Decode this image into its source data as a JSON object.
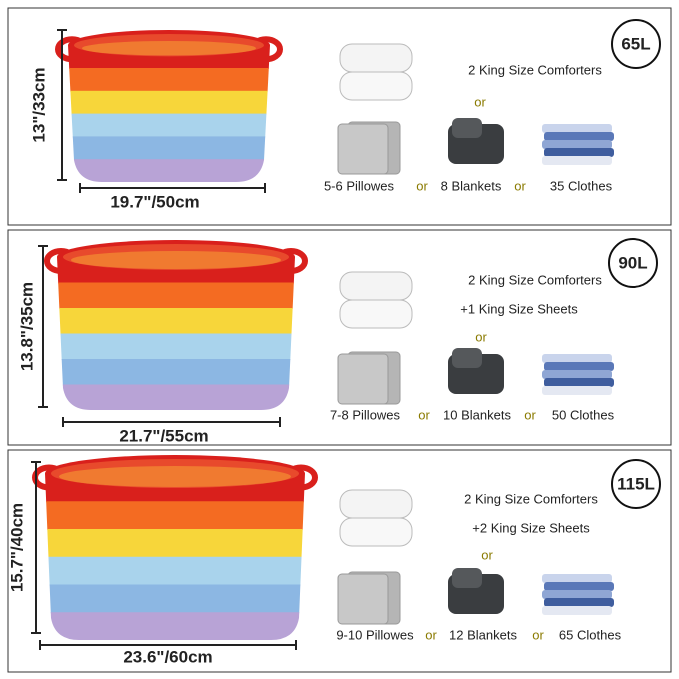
{
  "panels": [
    {
      "capacity": "65L",
      "height": "13\"/33cm",
      "width": "19.7\"/50cm",
      "comforters": "2 King Size Comforters",
      "or_top": "or",
      "pillows": "5-6 Pillowes",
      "or_left": "or",
      "blankets": "8 Blankets",
      "or_right": "or",
      "clothes": "35 Clothes"
    },
    {
      "capacity": "90L",
      "height": "13.8\"/35cm",
      "width": "21.7\"/55cm",
      "comforters": "2 King Size Comforters",
      "sheets": "+1 King Size Sheets",
      "or_top": "or",
      "pillows": "7-8 Pillowes",
      "or_left": "or",
      "blankets": "10 Blankets",
      "or_right": "or",
      "clothes": "50 Clothes"
    },
    {
      "capacity": "115L",
      "height": "15.7\"/40cm",
      "width": "23.6\"/60cm",
      "comforters": "2 King Size Comforters",
      "sheets": "+2 King Size Sheets",
      "or_top": "or",
      "pillows": "9-10 Pillowes",
      "or_left": "or",
      "blankets": "12 Blankets",
      "or_right": "or",
      "clothes": "65 Clothes"
    }
  ]
}
